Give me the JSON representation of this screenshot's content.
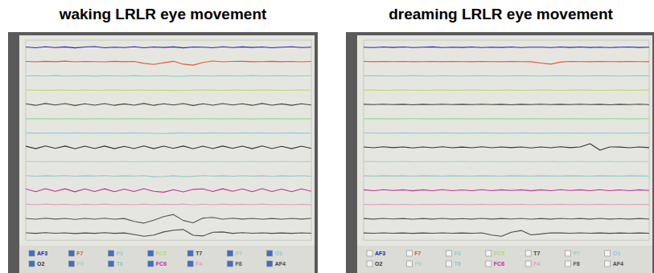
{
  "chart_data": [
    {
      "type": "line",
      "title": "waking LRLR eye movement",
      "tick_labels": false,
      "legend": "bottom",
      "x": [
        0,
        1,
        2,
        3,
        4,
        5,
        6,
        7,
        8,
        9,
        10,
        11,
        12,
        13,
        14,
        15,
        16,
        17,
        18,
        19,
        20,
        21,
        22,
        23,
        24,
        25,
        26,
        27,
        28,
        29
      ],
      "xlim": [
        0,
        29
      ],
      "ylim": [
        -50,
        50
      ],
      "series": [
        {
          "name": "AF3",
          "color": "#2a2aa8",
          "values": [
            2,
            -3,
            4,
            -2,
            3,
            -4,
            2,
            5,
            -3,
            1,
            -2,
            4,
            -3,
            2,
            -1,
            3,
            -4,
            2,
            1,
            -3,
            4,
            -2,
            3,
            -1,
            2,
            -3,
            1,
            4,
            -2,
            1
          ]
        },
        {
          "name": "F7",
          "color": "#e05a3a",
          "values": [
            1,
            -2,
            2,
            -1,
            3,
            -2,
            1,
            0,
            -2,
            2,
            -1,
            1,
            -12,
            -20,
            -8,
            2,
            -18,
            -25,
            -6,
            4,
            -2,
            1,
            2,
            -1,
            0,
            2,
            -1,
            1,
            -2,
            1
          ]
        },
        {
          "name": "F3",
          "color": "#7fd0d8",
          "values": [
            0,
            1,
            -1,
            2,
            -1,
            0,
            1,
            -2,
            1,
            0,
            -1,
            2,
            -1,
            0,
            1,
            -3,
            -2,
            1,
            0,
            -1,
            1,
            0,
            -1,
            2,
            -1,
            0,
            1,
            -1,
            0,
            1
          ]
        },
        {
          "name": "FC5",
          "color": "#b8d870",
          "values": [
            1,
            0,
            -1,
            1,
            0,
            -1,
            2,
            -1,
            0,
            1,
            -1,
            0,
            1,
            -1,
            0,
            -2,
            -1,
            0,
            1,
            0,
            -1,
            1,
            0,
            -1,
            1,
            0,
            -1,
            0,
            1,
            0
          ]
        },
        {
          "name": "T7",
          "color": "#444444",
          "values": [
            5,
            -6,
            7,
            -4,
            6,
            -7,
            5,
            -5,
            6,
            -6,
            4,
            -5,
            7,
            -6,
            5,
            -4,
            6,
            -7,
            5,
            -5,
            6,
            -4,
            5,
            -6,
            7,
            -5,
            4,
            -6,
            5,
            -4
          ]
        },
        {
          "name": "P7",
          "color": "#98d898",
          "values": [
            0,
            1,
            0,
            -1,
            1,
            0,
            -1,
            0,
            1,
            -1,
            0,
            1,
            0,
            -1,
            1,
            0,
            -1,
            0,
            1,
            0,
            -1,
            1,
            0,
            -1,
            0,
            1,
            0,
            -1,
            1,
            0
          ]
        },
        {
          "name": "O1",
          "color": "#8cc8d8",
          "values": [
            1,
            -1,
            0,
            1,
            -1,
            1,
            0,
            -1,
            1,
            0,
            -1,
            1,
            0,
            -2,
            -3,
            -1,
            1,
            0,
            -1,
            1,
            0,
            -1,
            1,
            0,
            1,
            -1,
            0,
            1,
            -1,
            0
          ]
        },
        {
          "name": "O2",
          "color": "#333333",
          "values": [
            8,
            -9,
            10,
            -7,
            9,
            -10,
            8,
            -8,
            9,
            -9,
            7,
            -8,
            10,
            -9,
            8,
            -7,
            9,
            -10,
            8,
            -8,
            9,
            -7,
            8,
            -9,
            10,
            -8,
            7,
            -9,
            8,
            -7
          ]
        },
        {
          "name": "P8",
          "color": "#a0d8c0",
          "values": [
            1,
            0,
            -1,
            1,
            0,
            -1,
            1,
            0,
            -1,
            0,
            1,
            -1,
            0,
            1,
            0,
            -1,
            1,
            0,
            -1,
            1,
            0,
            -1,
            0,
            1,
            -1,
            0,
            1,
            0,
            -1,
            1
          ]
        },
        {
          "name": "T8",
          "color": "#90c8c8",
          "values": [
            2,
            -2,
            1,
            -1,
            2,
            -2,
            1,
            -1,
            2,
            -2,
            1,
            -1,
            2,
            -6,
            -4,
            1,
            -5,
            -3,
            2,
            -1,
            1,
            -2,
            2,
            -1,
            1,
            -2,
            1,
            -1,
            2,
            -2
          ]
        },
        {
          "name": "FC6",
          "color": "#c030a0",
          "values": [
            9,
            -10,
            11,
            -8,
            10,
            -11,
            9,
            -9,
            10,
            -10,
            8,
            -9,
            11,
            -8,
            -14,
            4,
            -12,
            6,
            9,
            -9,
            10,
            -8,
            9,
            -10,
            11,
            -9,
            8,
            -10,
            9,
            -8
          ]
        },
        {
          "name": "F4",
          "color": "#e0a0c8",
          "values": [
            2,
            -2,
            3,
            -1,
            2,
            -3,
            2,
            -2,
            3,
            -2,
            1,
            -2,
            3,
            -2,
            2,
            -1,
            3,
            -3,
            2,
            -2,
            3,
            -1,
            2,
            -2,
            3,
            -2,
            1,
            -2,
            2,
            -1
          ]
        },
        {
          "name": "F8",
          "color": "#555555",
          "values": [
            3,
            -3,
            4,
            -2,
            3,
            -4,
            3,
            -3,
            4,
            -3,
            2,
            -18,
            -30,
            -10,
            15,
            30,
            -12,
            -28,
            5,
            10,
            -3,
            4,
            -2,
            3,
            -3,
            2,
            -3,
            3,
            -2,
            3
          ]
        },
        {
          "name": "AF4",
          "color": "#4a4a4a",
          "values": [
            2,
            -2,
            3,
            -1,
            2,
            -3,
            1,
            -2,
            3,
            -2,
            1,
            -10,
            -22,
            -14,
            8,
            20,
            25,
            -15,
            -20,
            6,
            8,
            -2,
            3,
            -1,
            2,
            -2,
            1,
            -2,
            2,
            -1
          ]
        }
      ]
    },
    {
      "type": "line",
      "title": "dreaming LRLR eye movement",
      "tick_labels": false,
      "legend": "bottom",
      "x": [
        0,
        1,
        2,
        3,
        4,
        5,
        6,
        7,
        8,
        9,
        10,
        11,
        12,
        13,
        14,
        15,
        16,
        17,
        18,
        19,
        20,
        21,
        22,
        23,
        24,
        25,
        26,
        27,
        28,
        29
      ],
      "xlim": [
        0,
        29
      ],
      "ylim": [
        -50,
        50
      ],
      "series": [
        {
          "name": "AF3",
          "color": "#2a2aa8",
          "values": [
            1,
            -2,
            2,
            -1,
            2,
            -2,
            1,
            3,
            -2,
            1,
            -1,
            2,
            -2,
            1,
            -1,
            2,
            -2,
            1,
            1,
            -2,
            2,
            -1,
            2,
            -1,
            1,
            -2,
            1,
            2,
            -1,
            1
          ]
        },
        {
          "name": "F7",
          "color": "#e05a3a",
          "values": [
            1,
            -1,
            1,
            0,
            1,
            -1,
            0,
            1,
            -1,
            1,
            0,
            -1,
            1,
            0,
            -1,
            1,
            0,
            -1,
            -10,
            -18,
            -4,
            1,
            0,
            -1,
            1,
            0,
            -1,
            1,
            0,
            -1
          ]
        },
        {
          "name": "F3",
          "color": "#7fd0d8",
          "values": [
            0,
            1,
            0,
            -1,
            0,
            1,
            0,
            -1,
            1,
            0,
            -1,
            0,
            1,
            0,
            -1,
            0,
            1,
            0,
            -1,
            0,
            1,
            0,
            -1,
            0,
            1,
            0,
            -1,
            0,
            1,
            0
          ]
        },
        {
          "name": "FC5",
          "color": "#b8d870",
          "values": [
            0,
            1,
            -1,
            0,
            1,
            0,
            -1,
            0,
            1,
            -1,
            0,
            1,
            0,
            -1,
            0,
            1,
            -1,
            0,
            1,
            0,
            -1,
            0,
            1,
            0,
            -1,
            0,
            1,
            -1,
            0,
            1
          ]
        },
        {
          "name": "T7",
          "color": "#444444",
          "values": [
            1,
            -1,
            2,
            -1,
            1,
            -2,
            1,
            -1,
            2,
            -1,
            1,
            -1,
            2,
            -1,
            1,
            -2,
            1,
            -1,
            2,
            -1,
            1,
            -1,
            2,
            -1,
            1,
            -2,
            1,
            -1,
            2,
            -1
          ]
        },
        {
          "name": "P7",
          "color": "#98d898",
          "values": [
            0,
            1,
            0,
            -1,
            0,
            1,
            0,
            -1,
            0,
            1,
            0,
            -1,
            0,
            1,
            0,
            -1,
            0,
            1,
            0,
            -1,
            0,
            1,
            0,
            -1,
            0,
            1,
            0,
            -1,
            0,
            1
          ]
        },
        {
          "name": "O1",
          "color": "#8cc8d8",
          "values": [
            1,
            0,
            -1,
            0,
            1,
            0,
            -1,
            0,
            1,
            0,
            -1,
            0,
            1,
            0,
            -1,
            0,
            1,
            0,
            -1,
            0,
            1,
            0,
            -1,
            0,
            1,
            0,
            -1,
            0,
            1,
            0
          ]
        },
        {
          "name": "O2",
          "color": "#333333",
          "values": [
            3,
            -3,
            4,
            -2,
            3,
            -4,
            3,
            -3,
            4,
            -3,
            2,
            -3,
            4,
            -3,
            3,
            -2,
            3,
            -4,
            3,
            -3,
            4,
            -2,
            3,
            25,
            -20,
            3,
            2,
            -3,
            3,
            -2
          ]
        },
        {
          "name": "P8",
          "color": "#a0d8c0",
          "values": [
            0,
            1,
            -1,
            0,
            1,
            -1,
            0,
            1,
            -1,
            0,
            1,
            -1,
            0,
            1,
            -1,
            0,
            1,
            -1,
            0,
            1,
            -1,
            0,
            1,
            -1,
            0,
            1,
            -1,
            0,
            1,
            -1
          ]
        },
        {
          "name": "T8",
          "color": "#90c8c8",
          "values": [
            1,
            -1,
            1,
            0,
            1,
            -1,
            1,
            0,
            -1,
            1,
            0,
            -1,
            1,
            0,
            -1,
            1,
            0,
            -1,
            1,
            0,
            -1,
            1,
            0,
            -1,
            1,
            0,
            -1,
            1,
            0,
            -1
          ]
        },
        {
          "name": "FC6",
          "color": "#c030a0",
          "values": [
            3,
            -3,
            4,
            -2,
            3,
            -4,
            3,
            -3,
            4,
            -3,
            2,
            -3,
            4,
            -3,
            3,
            -2,
            3,
            -4,
            3,
            -3,
            4,
            -2,
            3,
            -3,
            4,
            -3,
            2,
            -3,
            3,
            -2
          ]
        },
        {
          "name": "F4",
          "color": "#e0a0c8",
          "values": [
            1,
            -1,
            2,
            -1,
            1,
            -2,
            1,
            -1,
            2,
            -1,
            1,
            -1,
            2,
            -1,
            1,
            -1,
            2,
            -2,
            1,
            -1,
            2,
            -1,
            1,
            -1,
            2,
            -1,
            1,
            -1,
            1,
            -1
          ]
        },
        {
          "name": "F8",
          "color": "#555555",
          "values": [
            2,
            -2,
            3,
            -1,
            2,
            -3,
            2,
            -2,
            3,
            -2,
            1,
            -2,
            3,
            -2,
            2,
            -1,
            3,
            -3,
            2,
            -2,
            3,
            -1,
            2,
            -2,
            3,
            -2,
            1,
            -2,
            2,
            -1
          ]
        },
        {
          "name": "AF4",
          "color": "#4a4a4a",
          "values": [
            1,
            -1,
            2,
            -1,
            1,
            -2,
            1,
            -1,
            2,
            -1,
            1,
            -1,
            2,
            -14,
            -22,
            6,
            18,
            -12,
            -6,
            2,
            1,
            -1,
            2,
            -1,
            1,
            -2,
            1,
            -1,
            1,
            -1
          ]
        }
      ]
    }
  ]
}
